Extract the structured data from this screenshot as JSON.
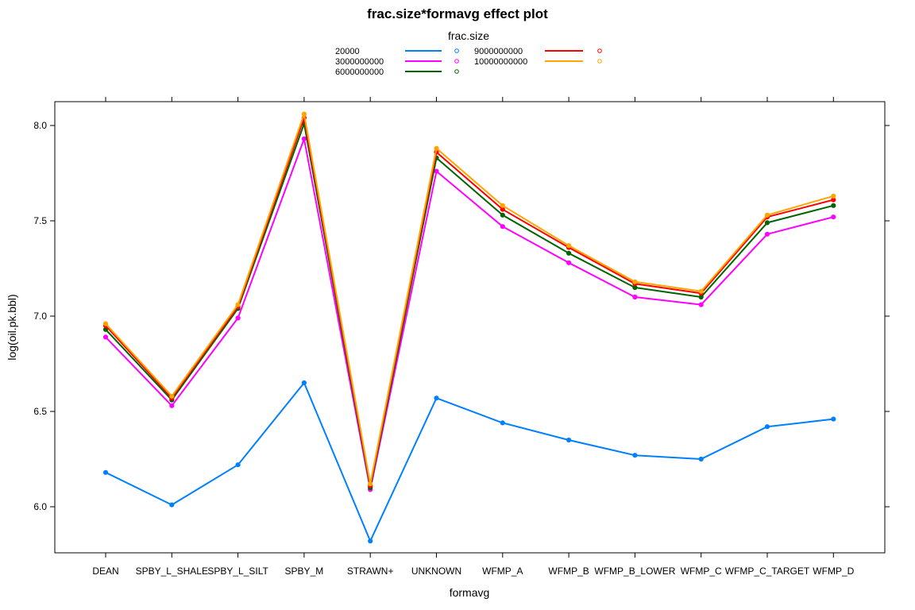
{
  "chart_data": {
    "type": "line",
    "title": "frac.size*formavg effect plot",
    "xlabel": "formavg",
    "ylabel": "log(oil.pk.bbl)",
    "ylim": [
      5.78,
      8.12
    ],
    "yticks": [
      6.0,
      6.5,
      7.0,
      7.5,
      8.0
    ],
    "grid": false,
    "legend_title": "frac.size",
    "legend_position": "top",
    "categories": [
      "DEAN",
      "SPBY_L_SHALE",
      "SPBY_L_SILT",
      "SPBY_M",
      "STRAWN+",
      "UNKNOWN",
      "WFMP_A",
      "WFMP_B",
      "WFMP_B_LOWER",
      "WFMP_C",
      "WFMP_C_TARGET",
      "WFMP_D"
    ],
    "series": [
      {
        "name": "20000",
        "color": "#0080ff",
        "values": [
          6.18,
          6.01,
          6.22,
          6.65,
          5.82,
          6.57,
          6.44,
          6.35,
          6.27,
          6.25,
          6.42,
          6.46
        ]
      },
      {
        "name": "3000000000",
        "color": "#ff00ff",
        "values": [
          6.89,
          6.53,
          6.99,
          7.93,
          6.09,
          7.76,
          7.47,
          7.28,
          7.1,
          7.06,
          7.43,
          7.52
        ]
      },
      {
        "name": "6000000000",
        "color": "#006400",
        "values": [
          6.93,
          6.56,
          7.04,
          8.01,
          6.1,
          7.83,
          7.53,
          7.33,
          7.15,
          7.1,
          7.49,
          7.58
        ]
      },
      {
        "name": "9000000000",
        "color": "#ff0000",
        "values": [
          6.95,
          6.57,
          7.05,
          8.04,
          6.11,
          7.86,
          7.56,
          7.36,
          7.17,
          7.12,
          7.52,
          7.61
        ]
      },
      {
        "name": "10000000000",
        "color": "#ffa500",
        "values": [
          6.96,
          6.58,
          7.06,
          8.06,
          6.12,
          7.88,
          7.58,
          7.37,
          7.18,
          7.13,
          7.53,
          7.63
        ]
      }
    ]
  }
}
